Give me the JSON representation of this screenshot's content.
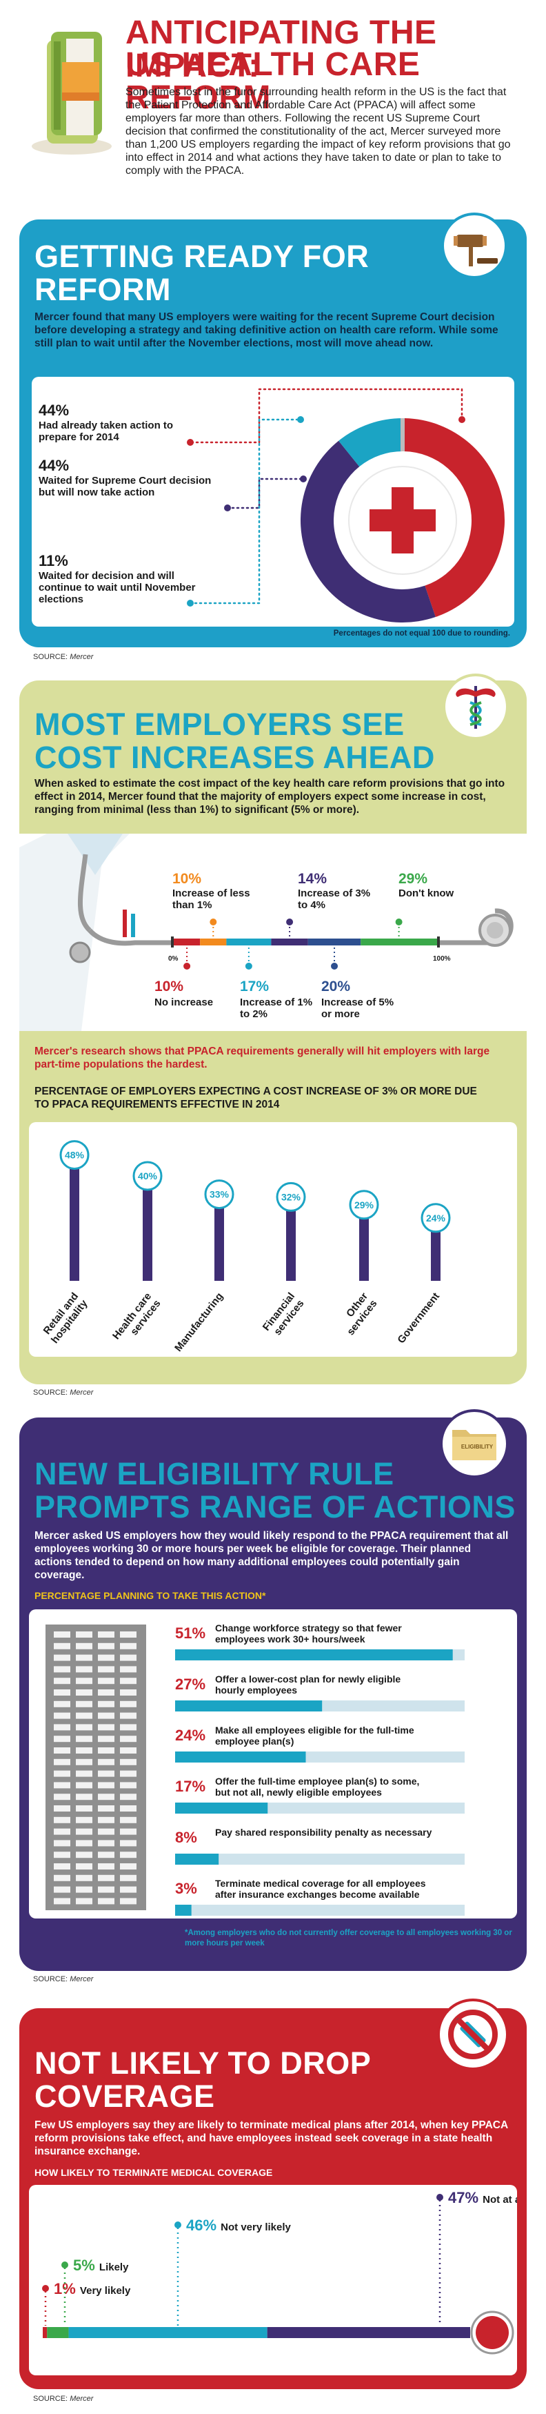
{
  "header": {
    "title_line1": "ANTICIPATING THE IMPACT:",
    "title_line2": "US HEALTH CARE REFORM",
    "intro": "Sometimes lost in the furor surrounding health reform in the US is the fact that the Patient Protection and Affordable Care Act (PPACA) will affect some employers far more than others. Following the recent US Supreme Court decision that confirmed the constitutionality of the act, Mercer surveyed more than 1,200 US employers regarding the impact of key reform provisions that go into effect in 2014 and what actions they have taken to date or plan to take to comply with the PPACA."
  },
  "sec1": {
    "title_line1": "GETTING READY FOR",
    "title_line2": "REFORM",
    "lead": "Mercer found that many US employers were waiting for the recent Supreme Court decision before developing a strategy and taking definitive action on health care reform. While some still plan to wait until after the November elections, most will move ahead now.",
    "items": [
      {
        "pct": "44%",
        "text": "Had already taken action to prepare for 2014"
      },
      {
        "pct": "44%",
        "text": "Waited for Supreme Court decision but will now take action"
      },
      {
        "pct": "11%",
        "text": "Waited for decision and will continue to wait until November elections"
      }
    ],
    "note": "Percentages do not equal 100 due to rounding.",
    "source_prefix": "SOURCE:",
    "source": "Mercer"
  },
  "sec2": {
    "title_line1": "MOST EMPLOYERS SEE",
    "title_line2": "COST INCREASES AHEAD",
    "lead": "When asked to estimate the cost impact of the key health care reform provisions that go into effect in 2014, Mercer found that the majority of employers expect some increase in cost, ranging from minimal (less than 1%) to significant (5% or more).",
    "scale_start": "0%",
    "scale_end": "100%",
    "top": [
      {
        "pct": "10%",
        "text": "Increase of less than 1%"
      },
      {
        "pct": "14%",
        "text": "Increase of 3% to 4%"
      },
      {
        "pct": "29%",
        "text": "Don't know"
      }
    ],
    "bottom": [
      {
        "pct": "10%",
        "text": "No increase"
      },
      {
        "pct": "17%",
        "text": "Increase of 1% to 2%"
      },
      {
        "pct": "20%",
        "text": "Increase of 5% or more"
      }
    ],
    "callout": "Mercer's research shows that PPACA requirements generally will hit employers with large part-time populations the hardest.",
    "bars_title": "PERCENTAGE OF EMPLOYERS EXPECTING A COST INCREASE OF 3% OR MORE DUE TO PPACA REQUIREMENTS EFFECTIVE IN 2014",
    "source_prefix": "SOURCE:",
    "source": "Mercer"
  },
  "sec3": {
    "badge": "ELIGIBILITY",
    "title_line1": "NEW ELIGIBILITY RULE",
    "title_line2": "PROMPTS RANGE OF ACTIONS",
    "lead": "Mercer asked US employers how they would likely respond to the PPACA requirement that all employees working 30 or more hours per week be eligible for coverage. Their planned actions tended to depend on how many additional employees could potentially gain coverage.",
    "subtitle": "PERCENTAGE PLANNING TO TAKE THIS ACTION*",
    "footnote": "*Among employers who do not currently offer coverage to all employees working 30 or more hours per week",
    "source_prefix": "SOURCE:",
    "source": "Mercer"
  },
  "sec4": {
    "title_line1": "NOT LIKELY TO DROP",
    "title_line2": "COVERAGE",
    "lead": "Few US employers say they are likely to terminate medical plans after 2014, when key PPACA reform provisions take effect, and have employees instead seek coverage in a state health insurance exchange.",
    "subtitle": "HOW LIKELY TO TERMINATE MEDICAL COVERAGE",
    "source_prefix": "SOURCE:",
    "source": "Mercer"
  },
  "colors": {
    "red": "#c8232c",
    "teal": "#1ba4c4",
    "purple": "#3f2e74",
    "green": "#3aa84a",
    "orange": "#f28a1e",
    "lime": "#d9df9c",
    "blue_bg": "#1e9fc8",
    "navy": "#2d4f8f"
  },
  "chart_data": [
    {
      "type": "pie",
      "title": "GETTING READY FOR REFORM",
      "categories": [
        "Had already taken action to prepare for 2014",
        "Waited for Supreme Court decision but will now take action",
        "Waited for decision and will continue to wait until November elections"
      ],
      "values": [
        44,
        44,
        11
      ],
      "units": "%"
    },
    {
      "type": "bar",
      "stacked": true,
      "title": "MOST EMPLOYERS SEE COST INCREASES AHEAD",
      "categories": [
        "No increase",
        "Increase of less than 1%",
        "Increase of 1% to 2%",
        "Increase of 3% to 4%",
        "Increase of 5% or more",
        "Don't know"
      ],
      "values": [
        10,
        10,
        17,
        14,
        20,
        29
      ],
      "units": "%"
    },
    {
      "type": "bar",
      "title": "PERCENTAGE OF EMPLOYERS EXPECTING A COST INCREASE OF 3% OR MORE DUE TO PPACA REQUIREMENTS EFFECTIVE IN 2014",
      "categories": [
        "Retail and hospitality",
        "Health care services",
        "Manufacturing",
        "Financial services",
        "Other services",
        "Government"
      ],
      "values": [
        48,
        40,
        33,
        32,
        29,
        24
      ],
      "labels": [
        "48%",
        "40%",
        "33%",
        "32%",
        "29%",
        "24%"
      ]
    },
    {
      "type": "bar",
      "orientation": "horizontal",
      "title": "PERCENTAGE PLANNING TO TAKE THIS ACTION*",
      "categories": [
        "Change workforce strategy so that fewer employees work 30+ hours/week",
        "Offer a lower-cost plan for newly eligible hourly employees",
        "Make all employees eligible for the full-time employee plan(s)",
        "Offer the full-time employee plan(s) to some, but not all, newly eligible employees",
        "Pay shared responsibility penalty as necessary",
        "Terminate medical coverage for all employees after insurance exchanges become available"
      ],
      "values": [
        51,
        27,
        24,
        17,
        8,
        3
      ],
      "labels": [
        "51%",
        "27%",
        "24%",
        "17%",
        "8%",
        "3%"
      ],
      "xlim": [
        0,
        100
      ]
    },
    {
      "type": "bar",
      "stacked": true,
      "title": "HOW LIKELY TO TERMINATE MEDICAL COVERAGE",
      "categories": [
        "Very likely",
        "Likely",
        "Not very likely",
        "Not at all likely"
      ],
      "values": [
        1,
        5,
        46,
        47
      ],
      "labels": [
        "1%",
        "5%",
        "46%",
        "47%"
      ]
    }
  ]
}
